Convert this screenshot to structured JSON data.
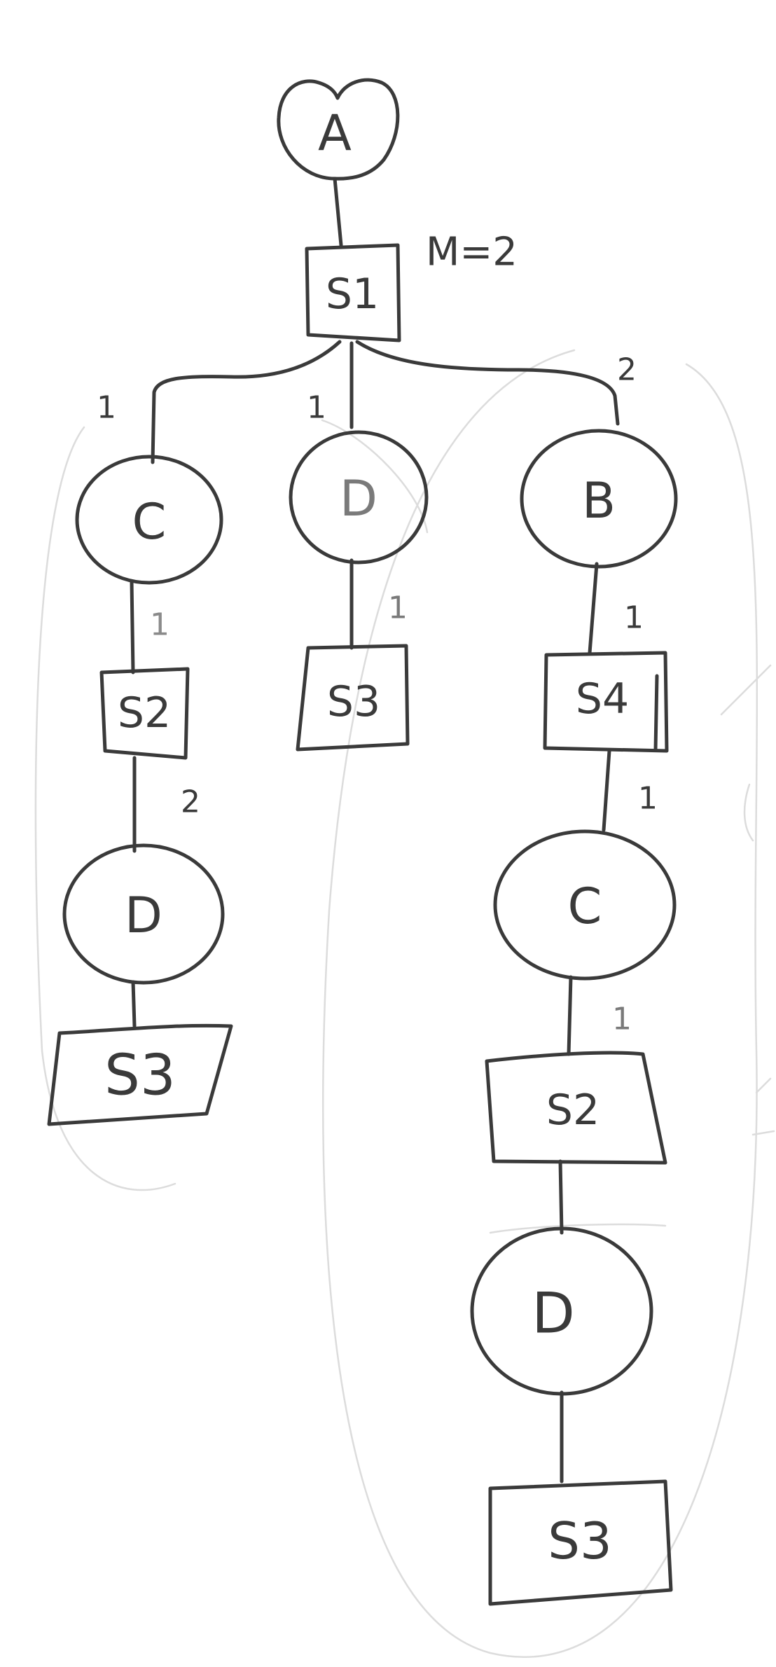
{
  "diagram": {
    "root": {
      "label": "A",
      "shape": "circle"
    },
    "root_child": {
      "label": "S1",
      "shape": "box",
      "note": "M=2"
    },
    "branches": [
      {
        "edge_label": "1",
        "nodes": [
          {
            "label": "C",
            "shape": "circle"
          },
          {
            "label": "S2",
            "shape": "box",
            "edge_label_above": "1"
          },
          {
            "label": "D",
            "shape": "circle",
            "edge_label_above": "2"
          },
          {
            "label": "S3",
            "shape": "box"
          }
        ]
      },
      {
        "edge_label": "1",
        "nodes": [
          {
            "label": "D",
            "shape": "circle"
          },
          {
            "label": "S3",
            "shape": "box",
            "edge_label_above": "1"
          }
        ]
      },
      {
        "edge_label": "2",
        "nodes": [
          {
            "label": "B",
            "shape": "circle"
          },
          {
            "label": "S4",
            "shape": "box",
            "edge_label_above": "1"
          },
          {
            "label": "C",
            "shape": "circle",
            "edge_label_above": "1"
          },
          {
            "label": "S2",
            "shape": "box",
            "edge_label_above": "1"
          },
          {
            "label": "D",
            "shape": "circle"
          },
          {
            "label": "S3",
            "shape": "box"
          }
        ]
      }
    ]
  }
}
